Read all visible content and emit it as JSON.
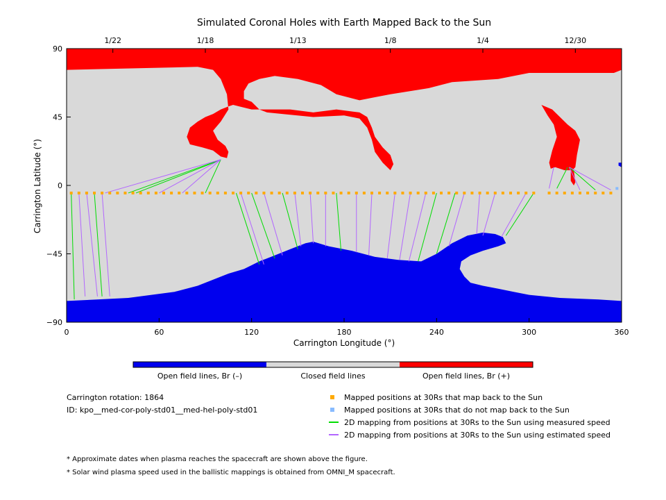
{
  "chart_data": {
    "type": "scatter",
    "title": "Simulated Coronal Holes with Earth Mapped Back to the Sun",
    "xlabel": "Carrington Longitude (°)",
    "ylabel": "Carrington Latitude (°)",
    "xlim": [
      0,
      360
    ],
    "ylim": [
      -90,
      90
    ],
    "x_ticks": [
      "0",
      "60",
      "120",
      "180",
      "240",
      "300",
      "360"
    ],
    "y_ticks": [
      "90",
      "45",
      "0",
      "-45",
      "-90"
    ],
    "top_axis_dates": [
      {
        "label": "1/22",
        "lon": 30
      },
      {
        "label": "1/18",
        "lon": 90
      },
      {
        "label": "1/13",
        "lon": 150
      },
      {
        "label": "1/8",
        "lon": 210
      },
      {
        "label": "1/4",
        "lon": 270
      },
      {
        "label": "12/30",
        "lon": 330
      }
    ],
    "colorbar": {
      "segments": [
        {
          "label": "Open field lines, Br (–)",
          "color": "#0000ee"
        },
        {
          "label": "Closed field lines",
          "color": "#d9d9d9"
        },
        {
          "label": "Open field lines, Br (+)",
          "color": "#ff0000"
        }
      ]
    },
    "regions": [
      {
        "polarity": "positive",
        "color": "#ff0000",
        "outline": [
          [
            0,
            90
          ],
          [
            360,
            90
          ],
          [
            360,
            76
          ],
          [
            355,
            74
          ],
          [
            300,
            74
          ],
          [
            280,
            70
          ],
          [
            250,
            68
          ],
          [
            235,
            64
          ],
          [
            210,
            60
          ],
          [
            200,
            58
          ],
          [
            190,
            56
          ],
          [
            175,
            60
          ],
          [
            165,
            66
          ],
          [
            150,
            70
          ],
          [
            135,
            72
          ],
          [
            125,
            70
          ],
          [
            118,
            67
          ],
          [
            115,
            62
          ],
          [
            115,
            57
          ],
          [
            120,
            55
          ],
          [
            125,
            50
          ],
          [
            130,
            48
          ],
          [
            140,
            47
          ],
          [
            160,
            45
          ],
          [
            180,
            46
          ],
          [
            190,
            44
          ],
          [
            195,
            38
          ],
          [
            198,
            30
          ],
          [
            200,
            22
          ],
          [
            205,
            15
          ],
          [
            210,
            10
          ],
          [
            212,
            14
          ],
          [
            210,
            20
          ],
          [
            205,
            25
          ],
          [
            200,
            32
          ],
          [
            198,
            38
          ],
          [
            195,
            45
          ],
          [
            190,
            48
          ],
          [
            175,
            50
          ],
          [
            160,
            48
          ],
          [
            145,
            50
          ],
          [
            130,
            50
          ],
          [
            120,
            50
          ],
          [
            112,
            52
          ],
          [
            108,
            53
          ],
          [
            105,
            52
          ],
          [
            100,
            50
          ],
          [
            95,
            47
          ],
          [
            90,
            45
          ],
          [
            85,
            42
          ],
          [
            80,
            38
          ],
          [
            78,
            32
          ],
          [
            80,
            27
          ],
          [
            88,
            25
          ],
          [
            95,
            23
          ],
          [
            100,
            19
          ],
          [
            104,
            18
          ],
          [
            105,
            22
          ],
          [
            103,
            26
          ],
          [
            98,
            30
          ],
          [
            95,
            36
          ],
          [
            100,
            42
          ],
          [
            105,
            50
          ],
          [
            104,
            60
          ],
          [
            100,
            70
          ],
          [
            95,
            76
          ],
          [
            85,
            78
          ],
          [
            0,
            76
          ]
        ]
      },
      {
        "polarity": "positive",
        "color": "#ff0000",
        "outline": [
          [
            308,
            53
          ],
          [
            315,
            50
          ],
          [
            320,
            45
          ],
          [
            325,
            40
          ],
          [
            330,
            36
          ],
          [
            333,
            30
          ],
          [
            331,
            20
          ],
          [
            330,
            12
          ],
          [
            328,
            10
          ],
          [
            323,
            10
          ],
          [
            317,
            12
          ],
          [
            314,
            11
          ],
          [
            313,
            15
          ],
          [
            315,
            23
          ],
          [
            318,
            32
          ],
          [
            316,
            40
          ],
          [
            312,
            46
          ],
          [
            308,
            53
          ]
        ]
      },
      {
        "polarity": "positive",
        "color": "#ff0000",
        "outline": [
          [
            327,
            10
          ],
          [
            329,
            10
          ],
          [
            330,
            2
          ],
          [
            329,
            0
          ],
          [
            327,
            3
          ],
          [
            327,
            10
          ]
        ]
      },
      {
        "polarity": "negative",
        "color": "#0000ee",
        "outline": [
          [
            0,
            -90
          ],
          [
            360,
            -90
          ],
          [
            360,
            -76
          ],
          [
            345,
            -75
          ],
          [
            320,
            -74
          ],
          [
            300,
            -72
          ],
          [
            290,
            -70
          ],
          [
            280,
            -68
          ],
          [
            270,
            -66
          ],
          [
            262,
            -64
          ],
          [
            258,
            -60
          ],
          [
            255,
            -55
          ],
          [
            256,
            -50
          ],
          [
            262,
            -46
          ],
          [
            270,
            -43
          ],
          [
            280,
            -40
          ],
          [
            285,
            -38
          ],
          [
            283,
            -34
          ],
          [
            278,
            -32
          ],
          [
            270,
            -31
          ],
          [
            260,
            -33
          ],
          [
            250,
            -38
          ],
          [
            240,
            -45
          ],
          [
            230,
            -50
          ],
          [
            215,
            -49
          ],
          [
            200,
            -47
          ],
          [
            185,
            -43
          ],
          [
            170,
            -40
          ],
          [
            160,
            -37
          ],
          [
            155,
            -38
          ],
          [
            145,
            -42
          ],
          [
            135,
            -46
          ],
          [
            125,
            -50
          ],
          [
            115,
            -55
          ],
          [
            105,
            -58
          ],
          [
            95,
            -62
          ],
          [
            85,
            -66
          ],
          [
            70,
            -70
          ],
          [
            55,
            -72
          ],
          [
            40,
            -74
          ],
          [
            20,
            -75
          ],
          [
            0,
            -76
          ]
        ]
      },
      {
        "polarity": "negative",
        "color": "#0000ee",
        "outline": [
          [
            358,
            15
          ],
          [
            360,
            15
          ],
          [
            360,
            12
          ],
          [
            358,
            13
          ]
        ]
      }
    ],
    "mapped_points_30Rs": {
      "y": -5,
      "x": [
        3,
        8,
        13,
        18,
        23,
        28,
        33,
        38,
        43,
        48,
        53,
        58,
        63,
        68,
        73,
        78,
        83,
        88,
        93,
        98,
        103,
        108,
        113,
        118,
        123,
        128,
        133,
        138,
        143,
        148,
        153,
        158,
        163,
        168,
        173,
        178,
        183,
        188,
        193,
        198,
        203,
        208,
        213,
        218,
        223,
        228,
        233,
        238,
        243,
        248,
        253,
        258,
        263,
        268,
        273,
        278,
        283,
        288,
        293,
        298,
        303,
        313,
        318,
        323,
        328,
        333,
        338,
        343,
        348,
        353
      ]
    },
    "mapped_points_30Rs_unmapped": {
      "y": -2,
      "x": [
        357
      ]
    },
    "mapping_lines": [
      {
        "speed": "measured",
        "color": "#00dd00",
        "from": [
          40,
          -5
        ],
        "to": [
          100,
          17
        ]
      },
      {
        "speed": "measured",
        "color": "#00dd00",
        "from": [
          45,
          -5
        ],
        "to": [
          98,
          16
        ]
      },
      {
        "speed": "measured",
        "color": "#00dd00",
        "from": [
          90,
          -5
        ],
        "to": [
          100,
          17
        ]
      },
      {
        "speed": "measured",
        "color": "#00dd00",
        "from": [
          110,
          -5
        ],
        "to": [
          125,
          -52
        ]
      },
      {
        "speed": "measured",
        "color": "#00dd00",
        "from": [
          120,
          -5
        ],
        "to": [
          135,
          -48
        ]
      },
      {
        "speed": "measured",
        "color": "#00dd00",
        "from": [
          140,
          -5
        ],
        "to": [
          150,
          -42
        ]
      },
      {
        "speed": "measured",
        "color": "#00dd00",
        "from": [
          175,
          -5
        ],
        "to": [
          178,
          -43
        ]
      },
      {
        "speed": "measured",
        "color": "#00dd00",
        "from": [
          240,
          -5
        ],
        "to": [
          228,
          -50
        ]
      },
      {
        "speed": "measured",
        "color": "#00dd00",
        "from": [
          252,
          -5
        ],
        "to": [
          240,
          -45
        ]
      },
      {
        "speed": "measured",
        "color": "#00dd00",
        "from": [
          303,
          -5
        ],
        "to": [
          285,
          -33
        ]
      },
      {
        "speed": "measured",
        "color": "#00dd00",
        "from": [
          318,
          -2
        ],
        "to": [
          325,
          12
        ]
      },
      {
        "speed": "measured",
        "color": "#00dd00",
        "from": [
          343,
          -3
        ],
        "to": [
          326,
          12
        ]
      },
      {
        "speed": "measured",
        "color": "#00dd00",
        "from": [
          3,
          -5
        ],
        "to": [
          5,
          -75
        ]
      },
      {
        "speed": "measured",
        "color": "#00dd00",
        "from": [
          18,
          -5
        ],
        "to": [
          23,
          -73
        ]
      },
      {
        "speed": "estimated",
        "color": "#b266ff",
        "from": [
          8,
          -5
        ],
        "to": [
          12,
          -73
        ]
      },
      {
        "speed": "estimated",
        "color": "#b266ff",
        "from": [
          13,
          -5
        ],
        "to": [
          20,
          -73
        ]
      },
      {
        "speed": "estimated",
        "color": "#b266ff",
        "from": [
          23,
          -5
        ],
        "to": [
          28,
          -73
        ]
      },
      {
        "speed": "estimated",
        "color": "#b266ff",
        "from": [
          25,
          -5
        ],
        "to": [
          100,
          17
        ]
      },
      {
        "speed": "estimated",
        "color": "#b266ff",
        "from": [
          60,
          -5
        ],
        "to": [
          100,
          17
        ]
      },
      {
        "speed": "estimated",
        "color": "#b266ff",
        "from": [
          75,
          -5
        ],
        "to": [
          100,
          17
        ]
      },
      {
        "speed": "estimated",
        "color": "#b266ff",
        "from": [
          113,
          -5
        ],
        "to": [
          128,
          -52
        ]
      },
      {
        "speed": "estimated",
        "color": "#b266ff",
        "from": [
          128,
          -5
        ],
        "to": [
          140,
          -46
        ]
      },
      {
        "speed": "estimated",
        "color": "#b266ff",
        "from": [
          148,
          -5
        ],
        "to": [
          152,
          -40
        ]
      },
      {
        "speed": "estimated",
        "color": "#b266ff",
        "from": [
          158,
          -5
        ],
        "to": [
          160,
          -38
        ]
      },
      {
        "speed": "estimated",
        "color": "#b266ff",
        "from": [
          168,
          -5
        ],
        "to": [
          168,
          -40
        ]
      },
      {
        "speed": "estimated",
        "color": "#b266ff",
        "from": [
          188,
          -5
        ],
        "to": [
          188,
          -44
        ]
      },
      {
        "speed": "estimated",
        "color": "#b266ff",
        "from": [
          198,
          -5
        ],
        "to": [
          196,
          -46
        ]
      },
      {
        "speed": "estimated",
        "color": "#b266ff",
        "from": [
          213,
          -5
        ],
        "to": [
          208,
          -48
        ]
      },
      {
        "speed": "estimated",
        "color": "#b266ff",
        "from": [
          223,
          -5
        ],
        "to": [
          216,
          -49
        ]
      },
      {
        "speed": "estimated",
        "color": "#b266ff",
        "from": [
          233,
          -5
        ],
        "to": [
          222,
          -50
        ]
      },
      {
        "speed": "estimated",
        "color": "#b266ff",
        "from": [
          258,
          -5
        ],
        "to": [
          248,
          -40
        ]
      },
      {
        "speed": "estimated",
        "color": "#b266ff",
        "from": [
          268,
          -5
        ],
        "to": [
          266,
          -32
        ]
      },
      {
        "speed": "estimated",
        "color": "#b266ff",
        "from": [
          278,
          -5
        ],
        "to": [
          270,
          -33
        ]
      },
      {
        "speed": "estimated",
        "color": "#b266ff",
        "from": [
          298,
          -5
        ],
        "to": [
          282,
          -34
        ]
      },
      {
        "speed": "estimated",
        "color": "#b266ff",
        "from": [
          313,
          -2
        ],
        "to": [
          316,
          12
        ]
      },
      {
        "speed": "estimated",
        "color": "#b266ff",
        "from": [
          353,
          -3
        ],
        "to": [
          326,
          12
        ]
      },
      {
        "speed": "estimated",
        "color": "#b266ff",
        "from": [
          333,
          -3
        ],
        "to": [
          326,
          12
        ]
      }
    ]
  },
  "info": {
    "rotation": "Carrington rotation: 1864",
    "id": "ID: kpo__med-cor-poly-std01__med-hel-poly-std01"
  },
  "legend": [
    {
      "kind": "square",
      "color": "#ffaa00",
      "label": "Mapped positions at 30Rs that map back to the Sun"
    },
    {
      "kind": "square",
      "color": "#88bbff",
      "label": "Mapped positions at 30Rs that do not map back to the Sun"
    },
    {
      "kind": "line",
      "color": "#00dd00",
      "label": "2D mapping from positions at 30Rs to the Sun using measured speed"
    },
    {
      "kind": "line",
      "color": "#b266ff",
      "label": "2D mapping from positions at 30Rs to the Sun using estimated speed"
    }
  ],
  "footnotes": [
    "* Approximate dates when plasma reaches the spacecraft are shown above the figure.",
    "* Solar wind plasma speed used in the ballistic mappings is obtained from OMNI_M spacecraft."
  ],
  "colors": {
    "closed": "#d9d9d9",
    "positive": "#ff0000",
    "negative": "#0000ee",
    "mapped": "#ffaa00",
    "unmapped": "#88bbff"
  }
}
